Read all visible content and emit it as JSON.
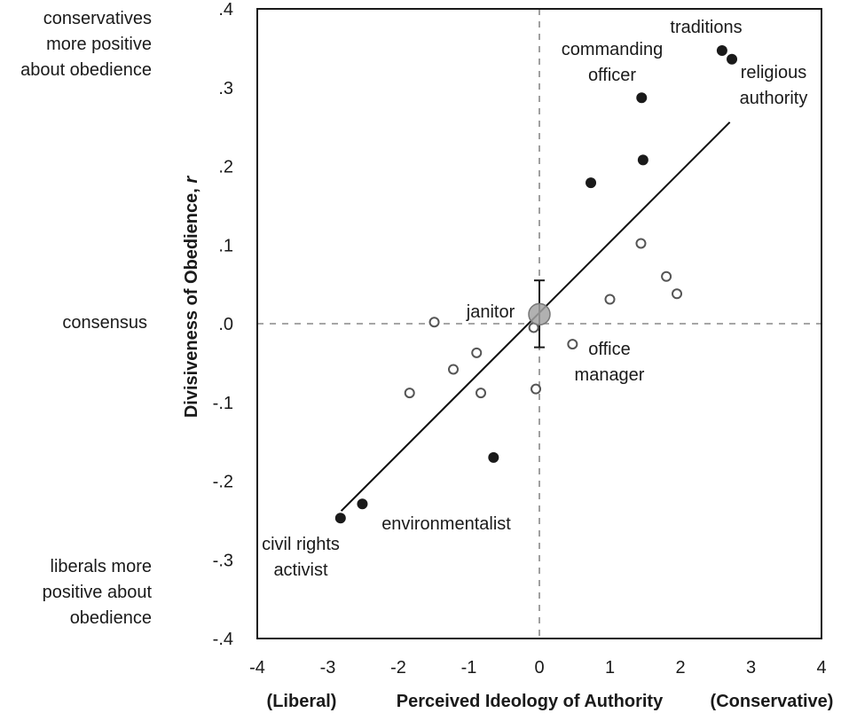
{
  "chart_data": {
    "type": "scatter",
    "title": "",
    "xlabel": "Perceived Ideology of Authority",
    "xlabel_left": "(Liberal)",
    "xlabel_right": "(Conservative)",
    "ylabel": "Divisiveness of Obedience, ",
    "ylabel_italic": "r",
    "xlim": [
      -4,
      4
    ],
    "ylim": [
      -0.4,
      0.4
    ],
    "x_ticks": [
      {
        "value": -4,
        "label": "-4"
      },
      {
        "value": -3,
        "label": "-3"
      },
      {
        "value": -2,
        "label": "-2"
      },
      {
        "value": -1,
        "label": "-1"
      },
      {
        "value": 0,
        "label": "0"
      },
      {
        "value": 1,
        "label": "1"
      },
      {
        "value": 2,
        "label": "2"
      },
      {
        "value": 3,
        "label": "3"
      },
      {
        "value": 4,
        "label": "4"
      }
    ],
    "y_ticks": [
      {
        "value": 0.4,
        "label": ".4"
      },
      {
        "value": 0.3,
        "label": ".3"
      },
      {
        "value": 0.2,
        "label": ".2"
      },
      {
        "value": 0.1,
        "label": ".1"
      },
      {
        "value": 0.0,
        "label": ".0"
      },
      {
        "value": -0.1,
        "label": "-.1"
      },
      {
        "value": -0.2,
        "label": "-.2"
      },
      {
        "value": -0.3,
        "label": "-.3"
      },
      {
        "value": -0.4,
        "label": "-.4"
      }
    ],
    "reference_lines": {
      "x": 0,
      "y": 0,
      "style": "dashed"
    },
    "series": [
      {
        "name": "filled",
        "marker": "filled-circle",
        "color": "#1a1a1a",
        "points": [
          {
            "x": 2.59,
            "y": 0.347,
            "label": "traditions"
          },
          {
            "x": 2.73,
            "y": 0.336,
            "label": "religious authority"
          },
          {
            "x": 1.45,
            "y": 0.287,
            "label": "commanding officer"
          },
          {
            "x": 1.47,
            "y": 0.208,
            "label": ""
          },
          {
            "x": 0.73,
            "y": 0.179,
            "label": ""
          },
          {
            "x": -0.65,
            "y": -0.17,
            "label": ""
          },
          {
            "x": -2.51,
            "y": -0.229,
            "label": "environmentalist"
          },
          {
            "x": -2.82,
            "y": -0.247,
            "label": "civil rights activist"
          }
        ]
      },
      {
        "name": "open",
        "marker": "open-circle",
        "color": "#555555",
        "points": [
          {
            "x": 1.44,
            "y": 0.102
          },
          {
            "x": 1.8,
            "y": 0.06
          },
          {
            "x": 1.95,
            "y": 0.038
          },
          {
            "x": 1.0,
            "y": 0.031
          },
          {
            "x": -1.49,
            "y": 0.002
          },
          {
            "x": -0.08,
            "y": -0.005
          },
          {
            "x": 0.47,
            "y": -0.026,
            "label": "office manager"
          },
          {
            "x": -0.89,
            "y": -0.037
          },
          {
            "x": -1.22,
            "y": -0.058
          },
          {
            "x": -0.83,
            "y": -0.088
          },
          {
            "x": -1.84,
            "y": -0.088
          },
          {
            "x": -0.05,
            "y": -0.083
          }
        ]
      },
      {
        "name": "janitor",
        "marker": "large-gray-circle",
        "color": "#a3a3a3",
        "points": [
          {
            "x": 0.0,
            "y": 0.012,
            "label": "janitor",
            "error_low": -0.03,
            "error_high": 0.055
          }
        ]
      }
    ],
    "regression_line": {
      "x1": -2.81,
      "y1": -0.238,
      "x2": 2.7,
      "y2": 0.256,
      "color": "#000000"
    },
    "annotations": [
      {
        "id": "traditions",
        "lines": [
          "traditions"
        ]
      },
      {
        "id": "commanding-officer",
        "lines": [
          "commanding",
          "officer"
        ]
      },
      {
        "id": "religious-authority",
        "lines": [
          "religious",
          "authority"
        ]
      },
      {
        "id": "janitor",
        "lines": [
          "janitor"
        ]
      },
      {
        "id": "office-manager",
        "lines": [
          "office",
          "manager"
        ]
      },
      {
        "id": "environmentalist",
        "lines": [
          "environmentalist"
        ]
      },
      {
        "id": "civil-rights-activist",
        "lines": [
          "civil rights",
          "activist"
        ]
      }
    ],
    "side_notes": {
      "top": [
        "conservatives",
        "more positive",
        "about obedience"
      ],
      "middle": [
        "consensus"
      ],
      "bottom": [
        "liberals more",
        "positive about",
        "obedience"
      ]
    },
    "grid": false,
    "legend": "none"
  }
}
